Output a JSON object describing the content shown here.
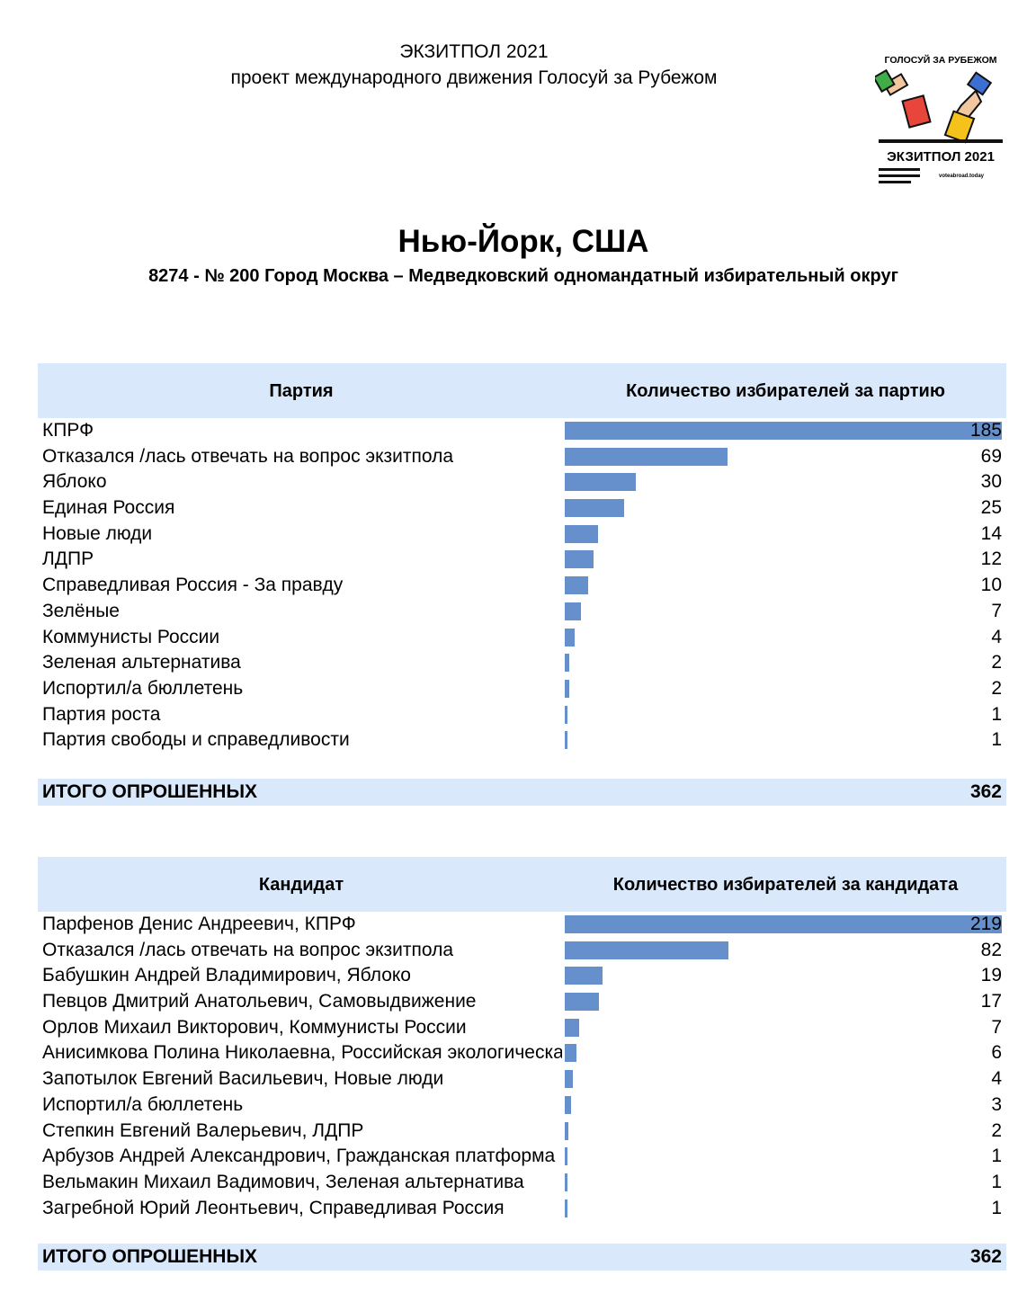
{
  "header": {
    "line1": "ЭКЗИТПОЛ 2021",
    "line2": "проект международного движения Голосуй за Рубежом"
  },
  "logo": {
    "top_text": "ГОЛОСУЙ ЗА РУБЕЖОМ",
    "bottom_text": "ЭКЗИТПОЛ 2021",
    "site": "voteabroad.today"
  },
  "title": "Нью-Йорк, США",
  "subtitle": "8274 - № 200 Город Москва – Медведковский одномандатный избирательный округ",
  "colors": {
    "bar": "#6590cb",
    "header_bg": "#dae8fb"
  },
  "chart_data": [
    {
      "type": "bar",
      "orientation": "horizontal",
      "col1_header": "Партия",
      "col2_header": "Количество избирателей за партию",
      "categories": [
        "КПРФ",
        "Отказался /лась отвечать на вопрос экзитпола",
        "Яблоко",
        "Единая Россия",
        "Новые люди",
        "ЛДПР",
        "Справедливая Россия - За правду",
        "Зелёные",
        "Коммунисты России",
        "Зеленая альтернатива",
        "Испортил/а бюллетень",
        "Партия роста",
        "Партия свободы и справедливости"
      ],
      "values": [
        185,
        69,
        30,
        25,
        14,
        12,
        10,
        7,
        4,
        2,
        2,
        1,
        1
      ],
      "total_label": "ИТОГО ОПРОШЕННЫХ",
      "total": 362
    },
    {
      "type": "bar",
      "orientation": "horizontal",
      "col1_header": "Кандидат",
      "col2_header": "Количество избирателей за кандидата",
      "categories": [
        "Парфенов Денис Андреевич, КПРФ",
        "Отказался /лась отвечать на вопрос экзитпола",
        "Бабушкин Андрей Владимирович, Яблоко",
        "Певцов Дмитрий Анатольевич, Самовыдвижение",
        "Орлов Михаил Викторович, Коммунисты России",
        "Анисимкова Полина Николаевна, Российская экологическая партия «Зелёные»",
        "Запотылок Евгений Васильевич, Новые люди",
        "Испортил/а бюллетень",
        "Степкин Евгений Валерьевич, ЛДПР",
        "Арбузов Андрей Александрович, Гражданская платформа",
        "Вельмакин Михаил Вадимович, Зеленая альтернатива",
        "Загребной Юрий Леонтьевич, Справедливая Россия"
      ],
      "values": [
        219,
        82,
        19,
        17,
        7,
        6,
        4,
        3,
        2,
        1,
        1,
        1
      ],
      "total_label": "ИТОГО ОПРОШЕННЫХ",
      "total": 362
    }
  ]
}
